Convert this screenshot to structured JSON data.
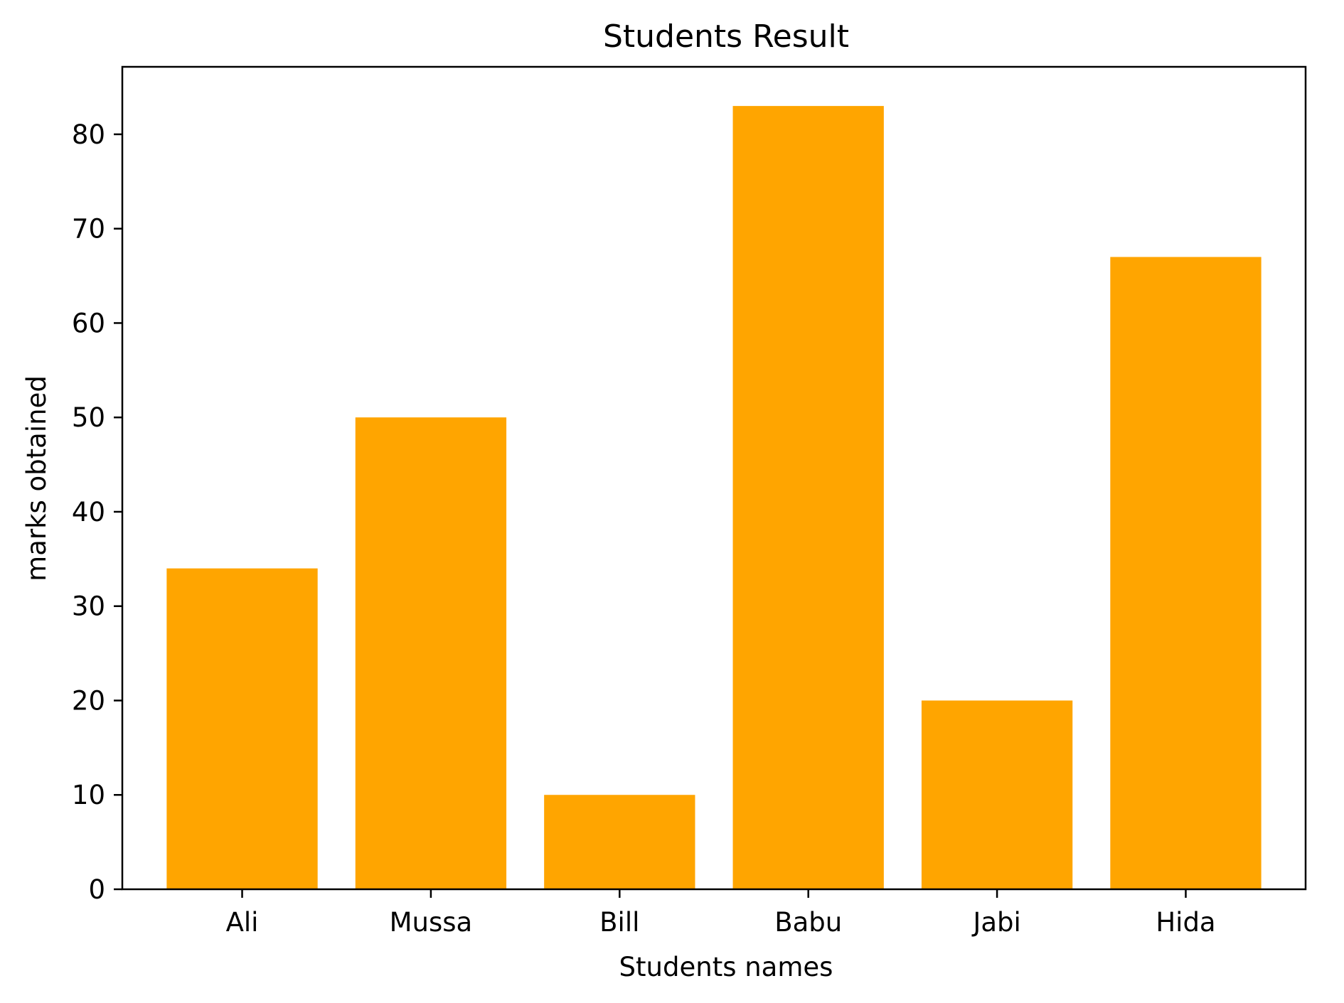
{
  "chart_data": {
    "type": "bar",
    "title": "Students Result",
    "xlabel": "Students names",
    "ylabel": "marks obtained",
    "categories": [
      "Ali",
      "Mussa",
      "Bill",
      "Babu",
      "Jabi",
      "Hida"
    ],
    "values": [
      34,
      50,
      10,
      83,
      20,
      67
    ],
    "ylim": [
      0,
      87.15
    ],
    "yticks": [
      0,
      10,
      20,
      30,
      40,
      50,
      60,
      70,
      80
    ],
    "grid": false,
    "bar_color": "#FFA500",
    "axis_color": "#000000",
    "background_color": "#FFFFFF"
  }
}
